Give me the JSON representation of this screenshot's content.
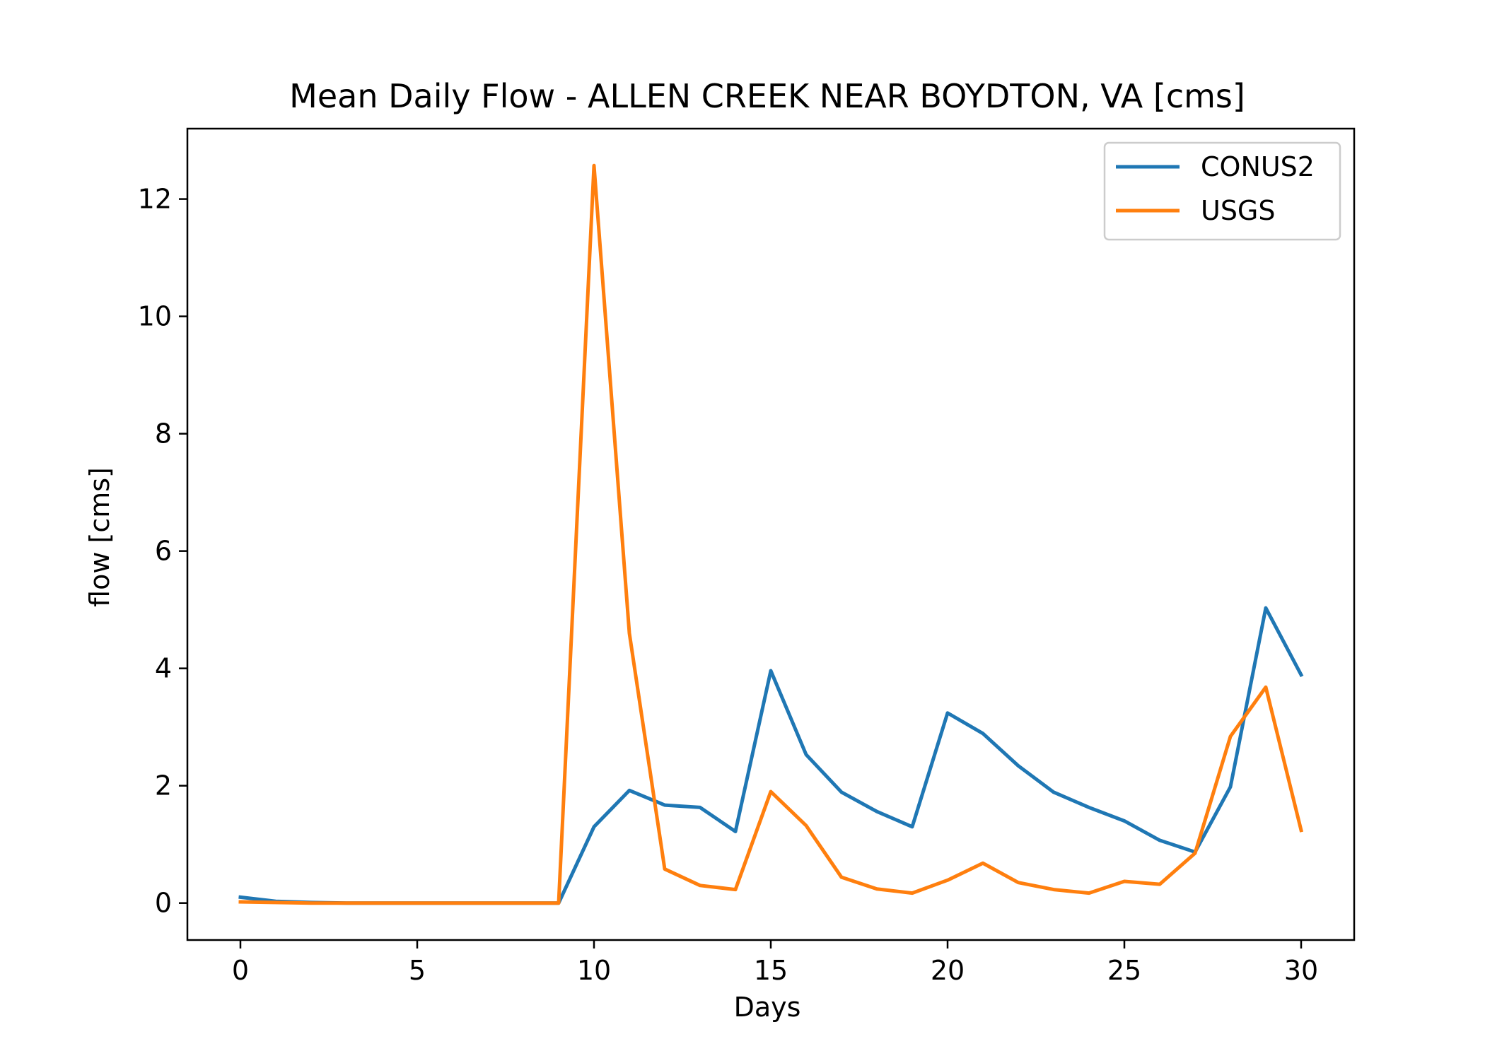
{
  "chart_data": {
    "type": "line",
    "title": "Mean Daily Flow - ALLEN CREEK NEAR BOYDTON, VA [cms]",
    "xlabel": "Days",
    "ylabel": "flow [cms]",
    "xlim": [
      -1.5,
      31.5
    ],
    "ylim": [
      -0.63,
      13.2
    ],
    "xticks": [
      0,
      5,
      10,
      15,
      20,
      25,
      30
    ],
    "yticks": [
      0,
      2,
      4,
      6,
      8,
      10,
      12
    ],
    "grid": false,
    "legend_position": "top-right",
    "x": [
      0,
      1,
      2,
      3,
      4,
      5,
      6,
      7,
      8,
      9,
      10,
      11,
      12,
      13,
      14,
      15,
      16,
      17,
      18,
      19,
      20,
      21,
      22,
      23,
      24,
      25,
      26,
      27,
      28,
      29,
      30
    ],
    "series": [
      {
        "name": "CONUS2",
        "color": "#1f77b4",
        "values": [
          0.1,
          0.03,
          0.01,
          0.0,
          0.0,
          0.0,
          0.0,
          0.0,
          0.0,
          0.0,
          1.3,
          1.92,
          1.67,
          1.63,
          1.22,
          3.96,
          2.53,
          1.89,
          1.56,
          1.3,
          3.24,
          2.89,
          2.34,
          1.89,
          1.63,
          1.4,
          1.07,
          0.87,
          1.98,
          5.03,
          3.89
        ]
      },
      {
        "name": "USGS",
        "color": "#ff7f0e",
        "values": [
          0.02,
          0.01,
          0.0,
          0.0,
          0.0,
          0.0,
          0.0,
          0.0,
          0.0,
          0.0,
          12.57,
          4.6,
          0.58,
          0.3,
          0.23,
          1.9,
          1.32,
          0.44,
          0.24,
          0.17,
          0.39,
          0.68,
          0.35,
          0.23,
          0.17,
          0.37,
          0.32,
          0.85,
          2.84,
          3.68,
          1.24
        ]
      }
    ]
  }
}
